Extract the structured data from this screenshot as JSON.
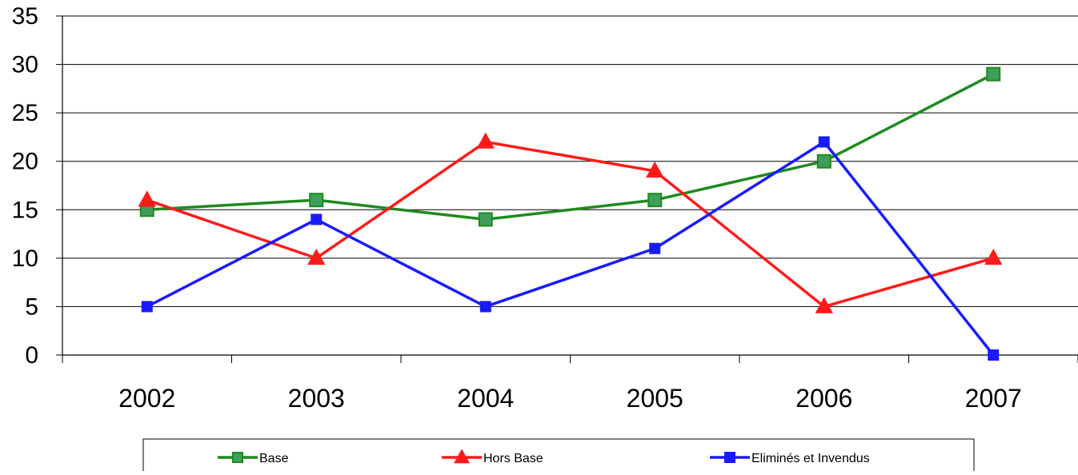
{
  "chart_data": {
    "type": "line",
    "categories": [
      "2002",
      "2003",
      "2004",
      "2005",
      "2006",
      "2007"
    ],
    "ylim": [
      0,
      35
    ],
    "yticks": [
      0,
      5,
      10,
      15,
      20,
      25,
      30,
      35
    ],
    "grid": true,
    "legend_position": "bottom",
    "series": [
      {
        "name": "Base",
        "color": "#1e8a1e",
        "marker_fill": "#3f9e5b",
        "marker": "square",
        "values": [
          15,
          16,
          14,
          16,
          20,
          29
        ]
      },
      {
        "name": "Hors Base",
        "color": "#ff1a1a",
        "marker_fill": "#ff1a1a",
        "marker": "triangle",
        "values": [
          16,
          10,
          22,
          19,
          5,
          10
        ]
      },
      {
        "name": "Eliminés et Invendus",
        "color": "#1a1aff",
        "marker_fill": "#1a1aff",
        "marker": "square",
        "values": [
          5,
          14,
          5,
          11,
          22,
          0
        ]
      }
    ]
  }
}
